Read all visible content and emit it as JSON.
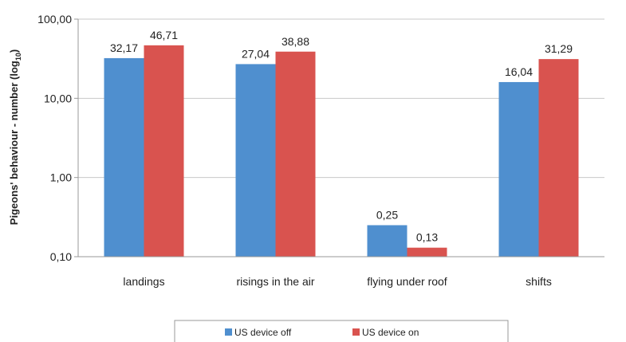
{
  "chart_data": {
    "type": "bar",
    "y_scale": "log10",
    "ylim": [
      0.1,
      100
    ],
    "yticks": [
      "100,00",
      "10,00",
      "1,00",
      "0,10"
    ],
    "ytick_values": [
      100,
      10,
      1,
      0.1
    ],
    "ylabel": "Pigeons' behaviour - number (log",
    "ylabel_sub": "10",
    "ylabel_end": ")",
    "xlabel": "",
    "categories": [
      "landings",
      "risings in the air",
      "flying under roof",
      "shifts"
    ],
    "series": [
      {
        "name": "US device off",
        "color": "#4f8fcf",
        "values": [
          32.17,
          27.04,
          0.25,
          16.04
        ],
        "labels": [
          "32,17",
          "27,04",
          "0,25",
          "16,04"
        ]
      },
      {
        "name": "US device on",
        "color": "#d9534f",
        "values": [
          46.71,
          38.88,
          0.13,
          31.29
        ],
        "labels": [
          "46,71",
          "38,88",
          "0,13",
          "31,29"
        ]
      }
    ],
    "grid": true,
    "legend": "bottom"
  }
}
